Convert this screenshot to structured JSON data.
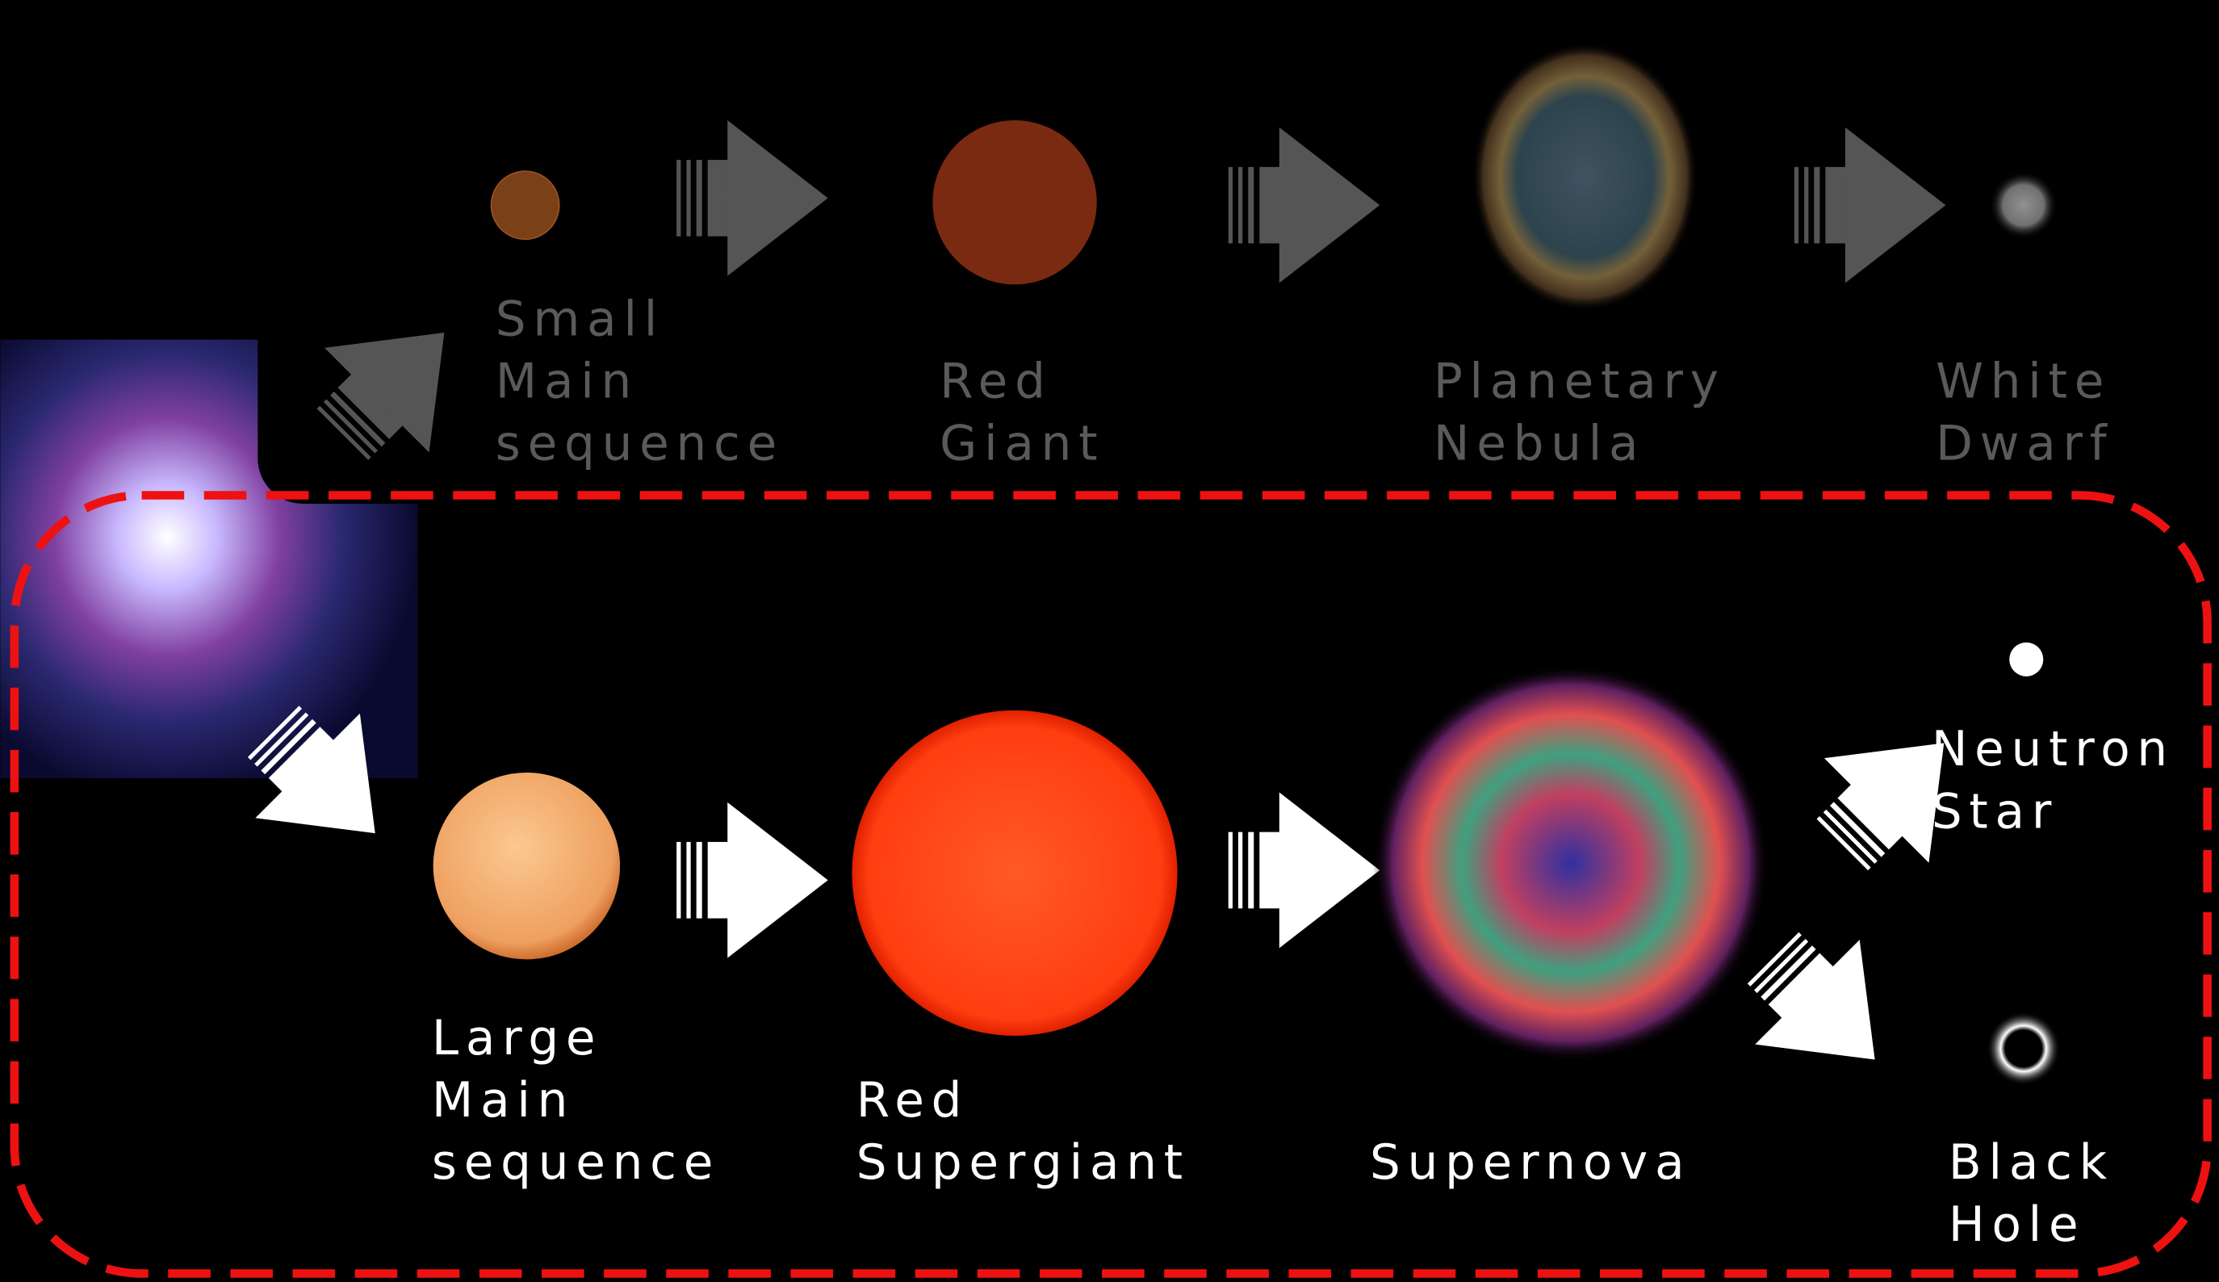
{
  "nodes": [
    {
      "label": [
        "Small",
        "Main",
        "sequence"
      ]
    },
    {
      "label": [
        "Red",
        "Giant"
      ]
    },
    {
      "label": [
        "Planetary",
        "Nebula"
      ]
    },
    {
      "label": [
        "White",
        "Dwarf"
      ]
    },
    {
      "label": [
        "Large",
        "Main",
        "sequence"
      ]
    },
    {
      "label": [
        "Red",
        "Supergiant"
      ]
    },
    {
      "label": [
        "Supernova"
      ]
    },
    {
      "label": [
        "Neutron",
        "Star"
      ]
    },
    {
      "label": [
        "Black",
        "Hole"
      ]
    }
  ]
}
